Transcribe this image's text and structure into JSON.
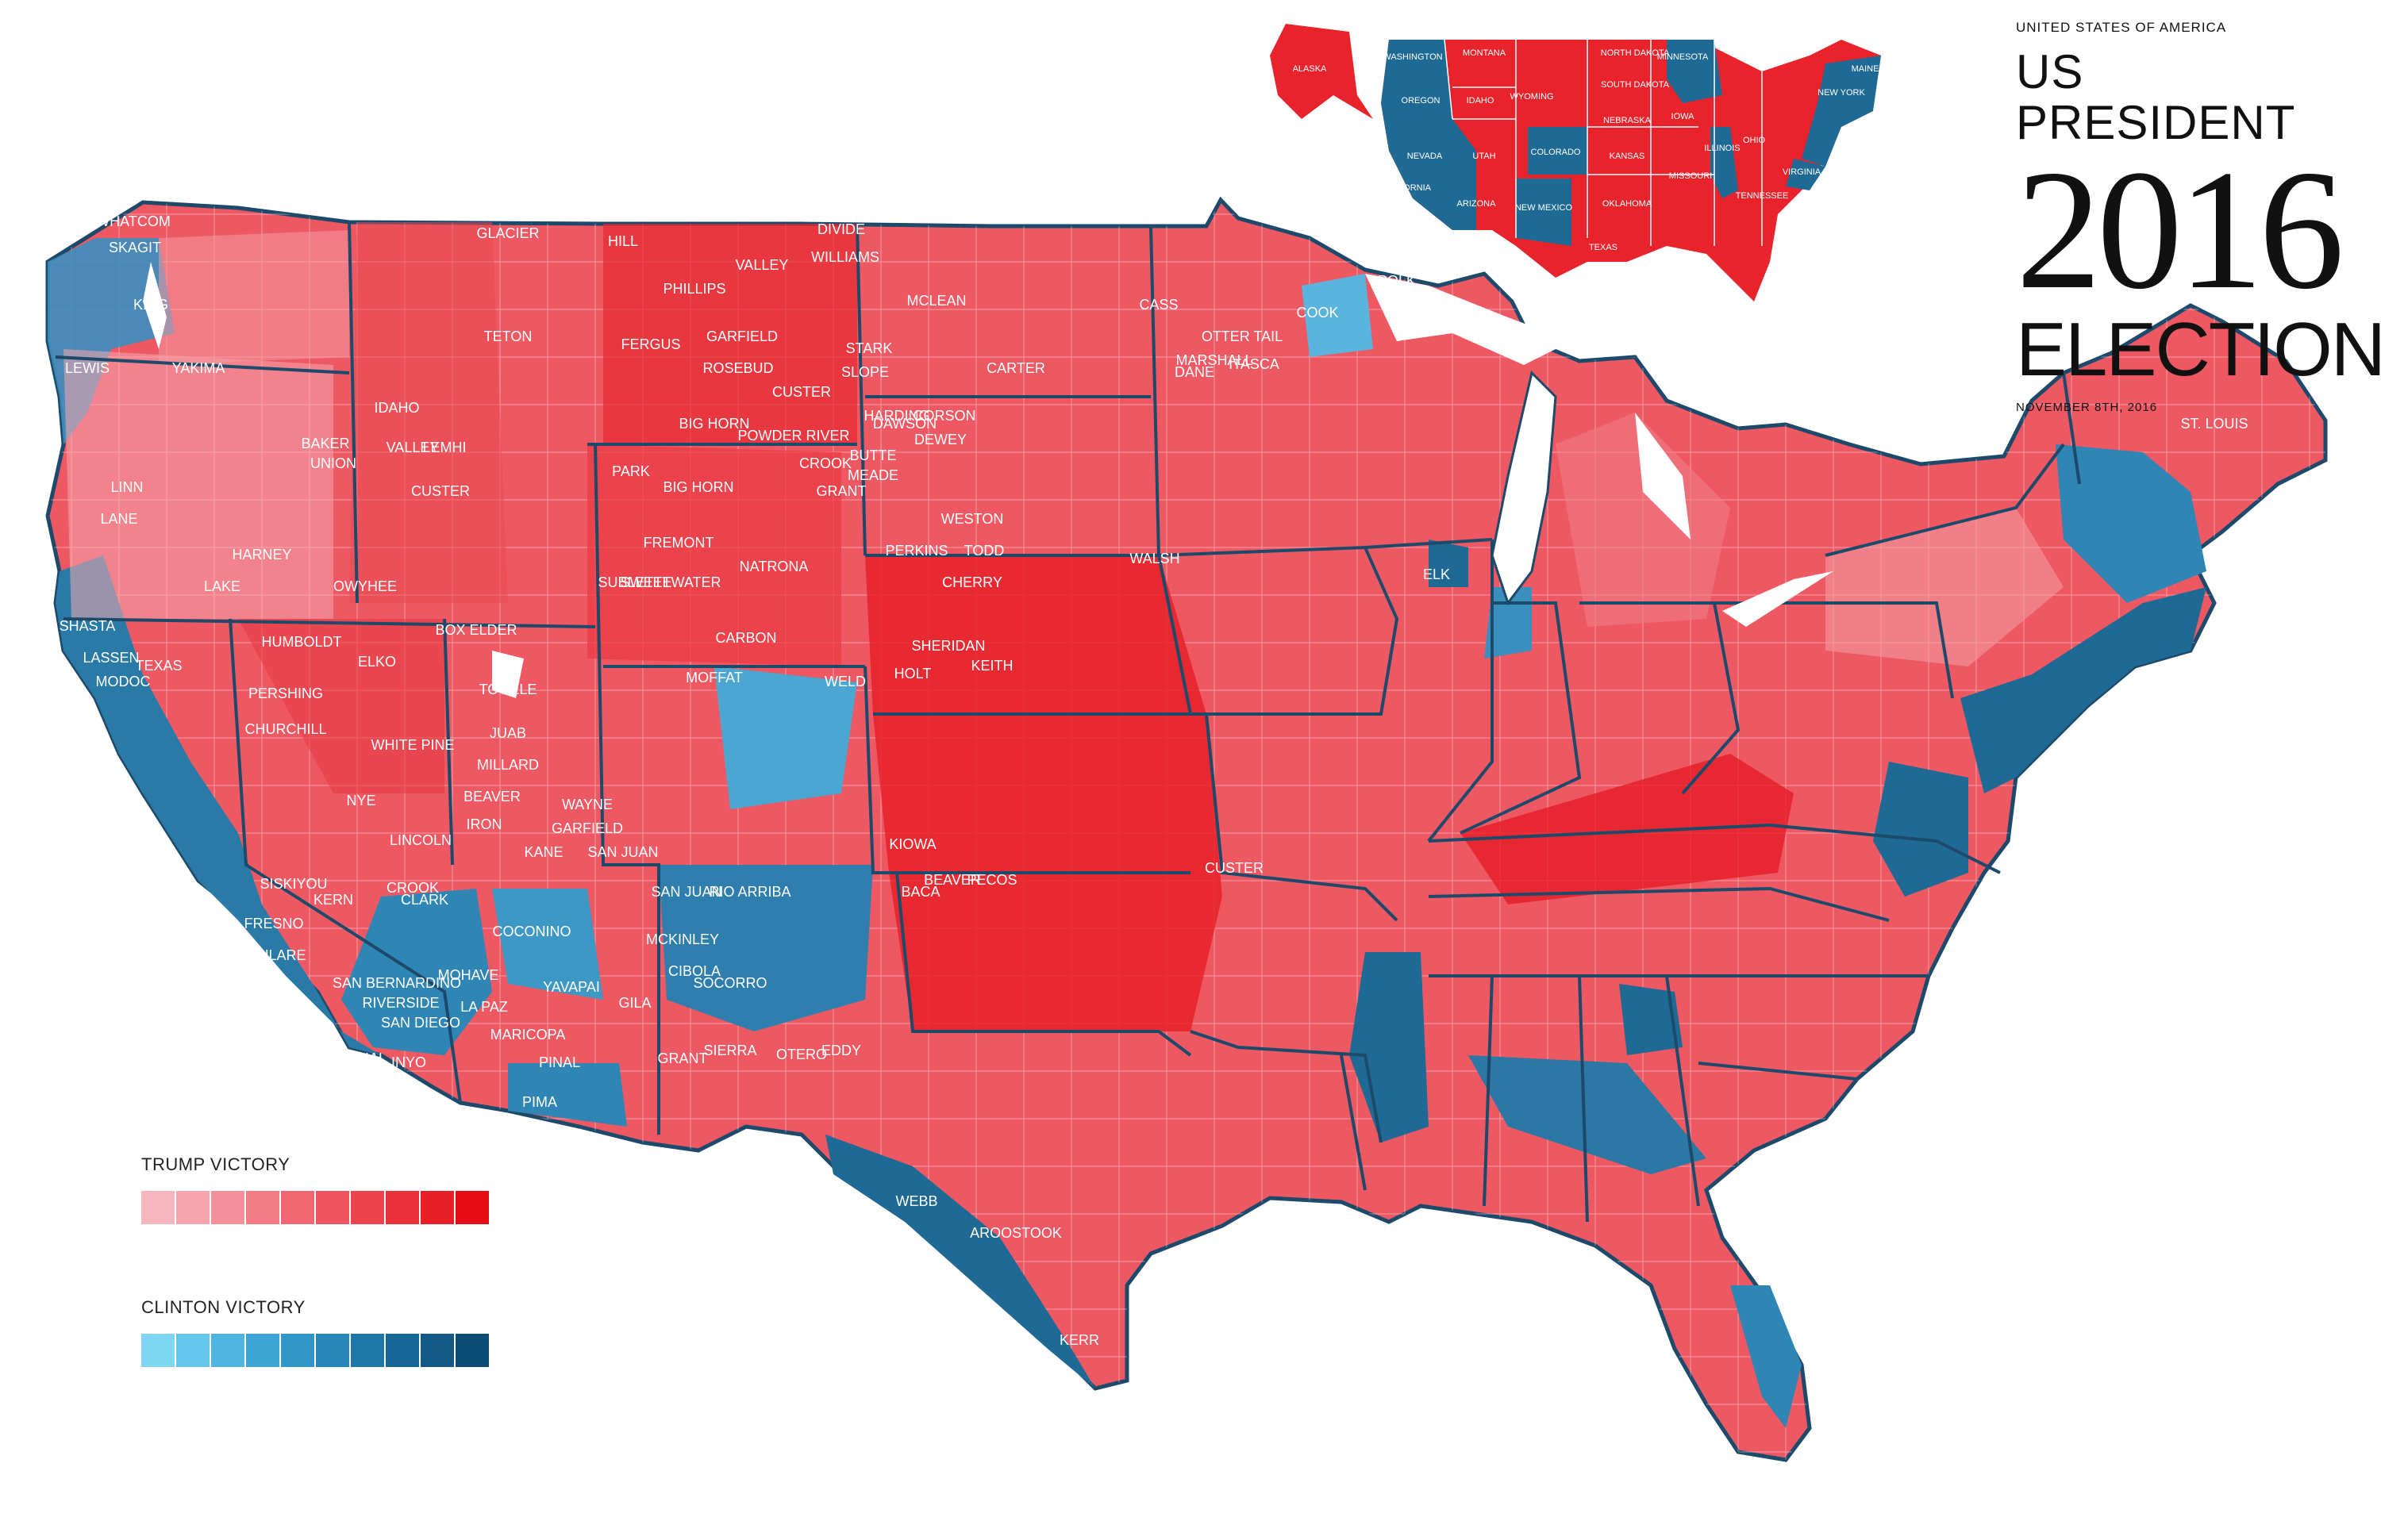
{
  "title": {
    "country": "UNITED STATES OF AMERICA",
    "line1": "US PRESIDENT",
    "year": "2016",
    "line3": "ELECTION",
    "date": "NOVEMBER 8TH, 2016"
  },
  "legend": {
    "trump_label": "TRUMP VICTORY",
    "clinton_label": "CLINTON VICTORY",
    "trump_colors": [
      "#f7b6bd",
      "#f6a3ab",
      "#f4909a",
      "#f27b86",
      "#f06772",
      "#ee545f",
      "#ec434d",
      "#ea313a",
      "#e81f26",
      "#e50b12"
    ],
    "clinton_colors": [
      "#7fd6f2",
      "#63c6ea",
      "#4fb6e1",
      "#3ea6d6",
      "#3196c8",
      "#2886b8",
      "#1f77a8",
      "#186897",
      "#125a85",
      "#0c4c74"
    ]
  },
  "colors": {
    "trump": "#e8232c",
    "clinton": "#1f6a94",
    "border": "#1d4a6b"
  },
  "inset": {
    "state_labels": [
      "ALASKA",
      "WASHINGTON",
      "MONTANA",
      "NORTH DAKOTA",
      "MINNESOTA",
      "OREGON",
      "IDAHO",
      "SOUTH DAKOTA",
      "WYOMING",
      "NEBRASKA",
      "IOWA",
      "NEVADA",
      "UTAH",
      "COLORADO",
      "KANSAS",
      "ILLINOIS",
      "OHIO",
      "NEW YORK",
      "MISSOURI",
      "ARIZONA",
      "NEW MEXICO",
      "OKLAHOMA",
      "TEXAS",
      "TENNESSEE",
      "VIRGINIA",
      "MAINE",
      "CALIFORNIA"
    ]
  },
  "map_labels": [
    "WHATCOM",
    "SKAGIT",
    "KING",
    "LEWIS",
    "YAKIMA",
    "LANE",
    "LINN",
    "HARNEY",
    "LAKE",
    "OWYHEE",
    "IDAHO",
    "VALLEY",
    "CUSTER",
    "LEMHI",
    "GLACIER",
    "HILL",
    "TETON",
    "FERGUS",
    "GARFIELD",
    "PHILLIPS",
    "VALLEY",
    "ROSEBUD",
    "CUSTER",
    "BIG HORN",
    "POWDER RIVER",
    "SLOPE",
    "STARK",
    "MCLEAN",
    "DIVIDE",
    "WILLIAMS",
    "PARK",
    "BIG HORN",
    "FREMONT",
    "SWEETWATER",
    "CARBON",
    "SUBLETTE",
    "NATRONA",
    "BUTTE",
    "MEADE",
    "CORSON",
    "DEWEY",
    "TODD",
    "CHERRY",
    "HOLT",
    "KEITH",
    "HUMBOLDT",
    "ELKO",
    "PERSHING",
    "CHURCHILL",
    "WHITE PINE",
    "NYE",
    "LINCOLN",
    "CLARK",
    "BOX ELDER",
    "TOOELE",
    "JUAB",
    "MILLARD",
    "BEAVER",
    "IRON",
    "WAYNE",
    "GARFIELD",
    "KANE",
    "SAN JUAN",
    "MOFFAT",
    "WELD",
    "BACA",
    "KIOWA",
    "SAN JUAN",
    "RIO ARRIBA",
    "MCKINLEY",
    "CIBOLA",
    "SOCORRO",
    "SIERRA",
    "OTERO",
    "EDDY",
    "GRANT",
    "COCONINO",
    "YAVAPAI",
    "GILA",
    "PINAL",
    "PIMA",
    "MARICOPA",
    "LA PAZ",
    "MOHAVE",
    "SAN BERNARDINO",
    "RIVERSIDE",
    "SAN DIEGO",
    "IMPERIAL",
    "INYO",
    "KERN",
    "TULARE",
    "FRESNO",
    "SISKIYOU",
    "SHASTA",
    "LASSEN",
    "MODOC",
    "TEXAS",
    "BEAVER",
    "PECOS",
    "WEBB",
    "KERR",
    "AROOSTOOK",
    "ST. LOUIS",
    "COOK",
    "POLK",
    "CASS",
    "OTTER TAIL",
    "DANE",
    "ELK",
    "CUSTER",
    "SHERIDAN",
    "CROOK",
    "WESTON",
    "GRANT",
    "BAKER",
    "UNION",
    "CROOK",
    "HARDING",
    "PERKINS",
    "WALSH",
    "MARSHALL",
    "ITASCA",
    "CARTER",
    "DAWSON"
  ]
}
